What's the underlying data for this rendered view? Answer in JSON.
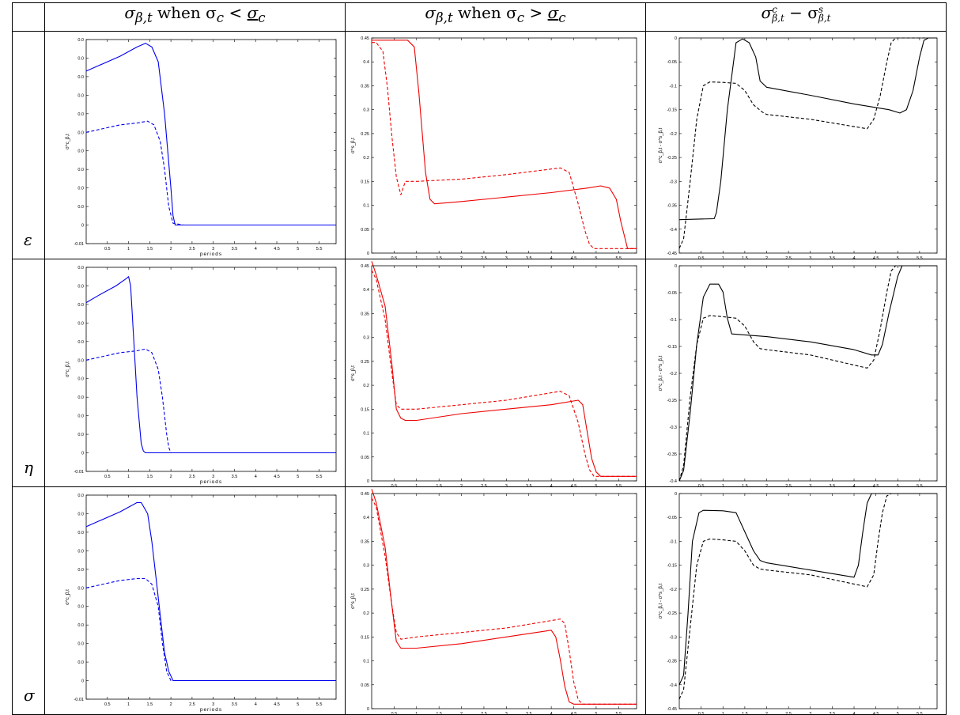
{
  "columns": [
    {
      "id": "c1",
      "title_main": "σ",
      "title_sub": "β,t",
      "title_rest": " when σ",
      "title_c": "c",
      "title_op": " < ",
      "title_ul": "σ",
      "title_ul_sub": "c"
    },
    {
      "id": "c2",
      "title_main": "σ",
      "title_sub": "β,t",
      "title_rest": " when σ",
      "title_c": "c",
      "title_op": " > ",
      "title_ul": "σ",
      "title_ul_sub": "c"
    },
    {
      "id": "c3",
      "title_main": "σ",
      "title_sup": "c",
      "title_sub": "β,t",
      "title_rest": " − σ",
      "title_sup2": "s",
      "title_sub2": "β,t"
    }
  ],
  "rows": [
    {
      "symbol": "ε"
    },
    {
      "symbol": "η"
    },
    {
      "symbol": "σ"
    }
  ],
  "x_axis": {
    "label": "periods",
    "ticks": [
      "0.5",
      "1",
      "1.5",
      "2",
      "2.5",
      "3",
      "3.5",
      "4",
      "4.5",
      "5",
      "5.5"
    ],
    "range": [
      0,
      5.9
    ]
  },
  "panel_styles": {
    "c1": {
      "color": "#0000ee",
      "ylabel": "σ^c_β,t"
    },
    "c2": {
      "color": "#ee0000",
      "ylabel": "σ^s_β,t"
    },
    "c3": {
      "color": "#000000",
      "ylabel": "σ^c_β,t - σ^s_β,t"
    }
  },
  "chart_data": [
    {
      "type": "line",
      "panel": "r1c1",
      "ylim": [
        -0.01,
        0.1
      ],
      "yticks": [
        "-0.01",
        "0",
        "0.0",
        "0.0",
        "0.0",
        "0.0",
        "0.0",
        "0.0",
        "0.0",
        "0.0",
        "0.0",
        "0.0"
      ],
      "series": [
        {
          "style": "solid",
          "x": [
            0,
            0.3,
            0.8,
            1.2,
            1.4,
            1.55,
            1.7,
            1.85,
            2.0,
            2.05,
            2.1,
            2.3,
            5.9
          ],
          "y": [
            0.083,
            0.086,
            0.091,
            0.096,
            0.098,
            0.096,
            0.088,
            0.06,
            0.02,
            0.005,
            0.0,
            0.0,
            0.0
          ]
        },
        {
          "style": "dashed",
          "x": [
            0,
            0.4,
            0.8,
            1.2,
            1.45,
            1.6,
            1.75,
            1.85,
            1.95,
            2.05,
            2.3,
            5.9
          ],
          "y": [
            0.05,
            0.052,
            0.054,
            0.055,
            0.056,
            0.054,
            0.045,
            0.03,
            0.01,
            0.001,
            0.0,
            0.0
          ]
        }
      ]
    },
    {
      "type": "line",
      "panel": "r1c2",
      "ylim": [
        -0.01,
        0.47
      ],
      "yticks": [
        "0",
        "0.05",
        "0.1",
        "0.15",
        "0.2",
        "0.25",
        "0.3",
        "0.35",
        "0.4",
        "0.45"
      ],
      "series": [
        {
          "style": "solid",
          "x": [
            0,
            0.2,
            0.8,
            0.95,
            1.05,
            1.2,
            1.3,
            1.4,
            2.0,
            3.0,
            4.0,
            4.8,
            5.1,
            5.3,
            5.45,
            5.55,
            5.65,
            5.7,
            5.9
          ],
          "y": [
            0.465,
            0.465,
            0.465,
            0.45,
            0.35,
            0.17,
            0.11,
            0.1,
            0.105,
            0.115,
            0.125,
            0.135,
            0.14,
            0.135,
            0.11,
            0.06,
            0.02,
            0.0,
            0.0
          ]
        },
        {
          "style": "dashed",
          "x": [
            0,
            0.1,
            0.25,
            0.35,
            0.45,
            0.55,
            0.65,
            0.75,
            1.0,
            2.0,
            3.0,
            4.2,
            4.4,
            4.6,
            4.75,
            4.85,
            4.95,
            5.9
          ],
          "y": [
            0.46,
            0.46,
            0.44,
            0.36,
            0.25,
            0.16,
            0.12,
            0.15,
            0.15,
            0.155,
            0.165,
            0.18,
            0.17,
            0.1,
            0.04,
            0.01,
            0.0,
            0.0
          ]
        }
      ]
    },
    {
      "type": "line",
      "panel": "r1c3",
      "ylim": [
        -0.45,
        0.0
      ],
      "yticks": [
        "-0.45",
        "-0.4",
        "-0.35",
        "-0.3",
        "-0.25",
        "-0.2",
        "-0.15",
        "-0.1",
        "-0.05",
        "0"
      ],
      "series": [
        {
          "style": "solid",
          "x": [
            0,
            0.8,
            0.85,
            0.95,
            1.1,
            1.3,
            1.45,
            1.6,
            1.75,
            1.85,
            2.0,
            3.0,
            4.0,
            4.8,
            5.05,
            5.2,
            5.35,
            5.5,
            5.6,
            5.7,
            5.9
          ],
          "y": [
            -0.38,
            -0.378,
            -0.365,
            -0.3,
            -0.15,
            -0.01,
            -0.002,
            -0.01,
            -0.04,
            -0.09,
            -0.103,
            -0.12,
            -0.138,
            -0.15,
            -0.157,
            -0.15,
            -0.11,
            -0.04,
            -0.005,
            0.0,
            0.0
          ]
        },
        {
          "style": "dashed",
          "x": [
            0,
            0.1,
            0.25,
            0.4,
            0.55,
            0.7,
            1.0,
            1.3,
            1.5,
            1.7,
            1.9,
            2.0,
            3.0,
            4.3,
            4.45,
            4.6,
            4.75,
            4.85,
            4.95,
            5.9
          ],
          "y": [
            -0.44,
            -0.42,
            -0.3,
            -0.17,
            -0.1,
            -0.092,
            -0.093,
            -0.095,
            -0.11,
            -0.14,
            -0.155,
            -0.16,
            -0.17,
            -0.19,
            -0.17,
            -0.12,
            -0.05,
            -0.01,
            0.0,
            0.0
          ]
        }
      ]
    },
    {
      "type": "line",
      "panel": "r2c1",
      "ylim": [
        -0.01,
        0.1
      ],
      "yticks": [
        "-0.01",
        "0",
        "0.0",
        "0.0",
        "0.0",
        "0.0",
        "0.0",
        "0.0",
        "0.0",
        "0.0",
        "0.0",
        "0.0"
      ],
      "series": [
        {
          "style": "solid",
          "x": [
            0,
            0.3,
            0.7,
            0.95,
            1.0,
            1.05,
            1.1,
            1.2,
            1.3,
            1.35,
            1.4,
            5.9
          ],
          "y": [
            0.081,
            0.085,
            0.09,
            0.094,
            0.095,
            0.09,
            0.07,
            0.03,
            0.005,
            0.001,
            0.0,
            0.0
          ]
        },
        {
          "style": "dashed",
          "x": [
            0,
            0.4,
            0.8,
            1.2,
            1.4,
            1.55,
            1.7,
            1.8,
            1.9,
            1.95,
            2.0,
            2.3,
            5.9
          ],
          "y": [
            0.05,
            0.052,
            0.054,
            0.055,
            0.056,
            0.054,
            0.045,
            0.03,
            0.01,
            0.003,
            0.0,
            0.0,
            0.0
          ]
        }
      ]
    },
    {
      "type": "line",
      "panel": "r2c2",
      "ylim": [
        -0.01,
        0.47
      ],
      "yticks": [
        "0",
        "0.05",
        "0.1",
        "0.15",
        "0.2",
        "0.25",
        "0.3",
        "0.35",
        "0.4",
        "0.45"
      ],
      "series": [
        {
          "style": "solid",
          "x": [
            0,
            0.1,
            0.3,
            0.45,
            0.55,
            0.65,
            0.75,
            1.0,
            2.0,
            3.0,
            4.0,
            4.6,
            4.7,
            4.8,
            4.9,
            5.0,
            5.1,
            5.9
          ],
          "y": [
            0.48,
            0.45,
            0.38,
            0.25,
            0.15,
            0.13,
            0.125,
            0.125,
            0.14,
            0.15,
            0.16,
            0.17,
            0.16,
            0.1,
            0.04,
            0.01,
            0.0,
            0.0
          ]
        },
        {
          "style": "dashed",
          "x": [
            0,
            0.1,
            0.3,
            0.45,
            0.55,
            0.65,
            0.75,
            1.0,
            2.0,
            3.0,
            4.2,
            4.4,
            4.6,
            4.75,
            4.85,
            4.95,
            5.9
          ],
          "y": [
            0.46,
            0.44,
            0.35,
            0.23,
            0.16,
            0.15,
            0.15,
            0.15,
            0.16,
            0.17,
            0.19,
            0.18,
            0.12,
            0.05,
            0.015,
            0.0,
            0.0
          ]
        }
      ]
    },
    {
      "type": "line",
      "panel": "r2c3",
      "ylim": [
        -0.41,
        0.0
      ],
      "yticks": [
        "-0.4",
        "-0.35",
        "-0.3",
        "-0.25",
        "-0.2",
        "-0.15",
        "-0.1",
        "-0.05",
        "0"
      ],
      "series": [
        {
          "style": "solid",
          "x": [
            0,
            0.1,
            0.25,
            0.4,
            0.55,
            0.7,
            0.8,
            0.9,
            1.0,
            1.1,
            1.2,
            2.0,
            3.0,
            4.0,
            4.4,
            4.55,
            4.65,
            4.8,
            5.0,
            5.1,
            5.2,
            5.9
          ],
          "y": [
            -0.41,
            -0.39,
            -0.28,
            -0.15,
            -0.06,
            -0.035,
            -0.035,
            -0.035,
            -0.05,
            -0.1,
            -0.13,
            -0.135,
            -0.145,
            -0.16,
            -0.17,
            -0.17,
            -0.15,
            -0.09,
            -0.02,
            0.0,
            0.0,
            0.0
          ]
        },
        {
          "style": "dashed",
          "x": [
            0,
            0.1,
            0.25,
            0.4,
            0.55,
            0.7,
            1.0,
            1.3,
            1.5,
            1.7,
            1.85,
            2.0,
            3.0,
            4.3,
            4.45,
            4.6,
            4.75,
            4.85,
            4.95,
            5.9
          ],
          "y": [
            -0.41,
            -0.38,
            -0.25,
            -0.15,
            -0.1,
            -0.095,
            -0.097,
            -0.1,
            -0.115,
            -0.145,
            -0.158,
            -0.16,
            -0.17,
            -0.195,
            -0.18,
            -0.12,
            -0.05,
            -0.01,
            0.0,
            0.0
          ]
        }
      ]
    },
    {
      "type": "line",
      "panel": "r3c1",
      "ylim": [
        -0.01,
        0.1
      ],
      "yticks": [
        "-0.01",
        "0",
        "0.0",
        "0.0",
        "0.0",
        "0.0",
        "0.0",
        "0.0",
        "0.0",
        "0.0",
        "0.0",
        "0.0"
      ],
      "series": [
        {
          "style": "solid",
          "x": [
            0,
            0.3,
            0.8,
            1.2,
            1.3,
            1.45,
            1.55,
            1.65,
            1.75,
            1.85,
            1.95,
            2.05,
            2.3,
            5.9
          ],
          "y": [
            0.083,
            0.086,
            0.091,
            0.096,
            0.096,
            0.09,
            0.075,
            0.055,
            0.035,
            0.015,
            0.005,
            0.0,
            0.0,
            0.0
          ]
        },
        {
          "style": "dashed",
          "x": [
            0,
            0.4,
            0.8,
            1.2,
            1.4,
            1.55,
            1.7,
            1.8,
            1.9,
            2.0,
            2.3,
            5.9
          ],
          "y": [
            0.05,
            0.052,
            0.054,
            0.055,
            0.055,
            0.052,
            0.04,
            0.02,
            0.005,
            0.0,
            0.0,
            0.0
          ]
        }
      ]
    },
    {
      "type": "line",
      "panel": "r3c2",
      "ylim": [
        -0.01,
        0.47
      ],
      "yticks": [
        "0",
        "0.05",
        "0.1",
        "0.15",
        "0.2",
        "0.25",
        "0.3",
        "0.35",
        "0.4",
        "0.45"
      ],
      "series": [
        {
          "style": "solid",
          "x": [
            0,
            0.1,
            0.3,
            0.45,
            0.55,
            0.65,
            1.0,
            2.0,
            3.0,
            4.0,
            4.1,
            4.2,
            4.3,
            4.4,
            4.5,
            5.9
          ],
          "y": [
            0.48,
            0.45,
            0.35,
            0.22,
            0.14,
            0.125,
            0.125,
            0.135,
            0.15,
            0.165,
            0.15,
            0.1,
            0.04,
            0.005,
            0.0,
            0.0
          ]
        },
        {
          "style": "dashed",
          "x": [
            0,
            0.1,
            0.3,
            0.45,
            0.55,
            0.65,
            1.0,
            2.0,
            3.0,
            4.2,
            4.3,
            4.4,
            4.5,
            4.6,
            4.7,
            4.8,
            5.9
          ],
          "y": [
            0.46,
            0.44,
            0.33,
            0.22,
            0.16,
            0.145,
            0.15,
            0.16,
            0.17,
            0.19,
            0.18,
            0.12,
            0.05,
            0.01,
            0.0,
            0.0,
            0.0
          ]
        }
      ]
    },
    {
      "type": "line",
      "panel": "r3c3",
      "ylim": [
        -0.45,
        0.0
      ],
      "yticks": [
        "-0.45",
        "-0.4",
        "-0.35",
        "-0.3",
        "-0.25",
        "-0.2",
        "-0.15",
        "-0.1",
        "-0.05",
        "0"
      ],
      "series": [
        {
          "style": "solid",
          "x": [
            0,
            0.1,
            0.2,
            0.3,
            0.45,
            0.55,
            1.0,
            1.3,
            1.5,
            1.7,
            1.85,
            2.0,
            3.0,
            4.0,
            4.1,
            4.2,
            4.3,
            4.4,
            4.5,
            5.9
          ],
          "y": [
            -0.4,
            -0.38,
            -0.25,
            -0.1,
            -0.04,
            -0.035,
            -0.036,
            -0.04,
            -0.08,
            -0.12,
            -0.14,
            -0.145,
            -0.16,
            -0.175,
            -0.15,
            -0.08,
            -0.02,
            0.0,
            0.0,
            0.0
          ]
        },
        {
          "style": "dashed",
          "x": [
            0,
            0.1,
            0.25,
            0.4,
            0.55,
            0.7,
            1.0,
            1.3,
            1.5,
            1.7,
            1.85,
            2.0,
            3.0,
            4.3,
            4.45,
            4.55,
            4.65,
            4.75,
            4.85,
            5.9
          ],
          "y": [
            -0.43,
            -0.41,
            -0.28,
            -0.15,
            -0.1,
            -0.095,
            -0.097,
            -0.1,
            -0.12,
            -0.15,
            -0.158,
            -0.16,
            -0.17,
            -0.195,
            -0.17,
            -0.1,
            -0.04,
            -0.005,
            0.0,
            0.0
          ]
        }
      ]
    }
  ]
}
